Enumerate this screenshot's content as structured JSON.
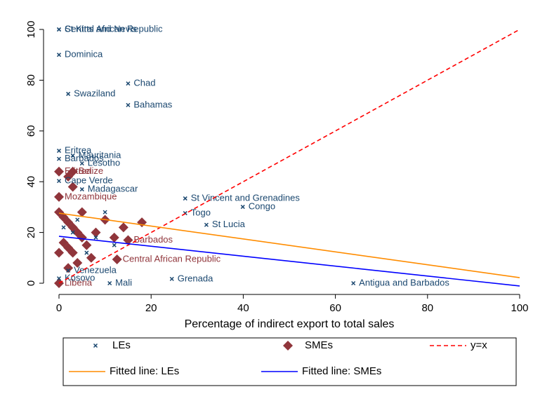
{
  "chart_data": {
    "type": "scatter",
    "x_label": "Percentage of indirect export to total sales",
    "xlim": [
      0,
      100
    ],
    "ylim": [
      0,
      100
    ],
    "xticks": [
      0,
      20,
      40,
      60,
      80,
      100
    ],
    "yticks": [
      0,
      20,
      40,
      60,
      80,
      100
    ],
    "series": [
      {
        "name": "LEs",
        "kind": "marker",
        "marker": "x",
        "color": "#1a476f",
        "x": [
          0,
          0,
          0,
          15,
          2,
          15,
          0,
          3,
          0,
          5,
          0,
          5,
          27.4,
          39.9,
          24.5,
          63.9,
          11,
          0,
          2,
          27.4,
          32,
          1,
          4,
          8,
          12,
          6,
          3,
          10
        ],
        "values": [
          100,
          100,
          90,
          78.7,
          74.6,
          70.2,
          52.2,
          50.3,
          49,
          47.2,
          40.3,
          37,
          33.4,
          30.1,
          1.7,
          0,
          0,
          1.9,
          5,
          27.6,
          23,
          22,
          25,
          18,
          15,
          12,
          20,
          28
        ],
        "labels": [
          "St Kitts and Nevis",
          "Central African Republic",
          "Dominica",
          "Chad",
          "Swaziland",
          "Bahamas",
          "Eritrea",
          "Mauritania",
          "Barbados",
          "Lesotho",
          "Cape Verde",
          "Madagascar",
          "St Vincent and Grenadines",
          "Congo",
          "Grenada",
          "Antigua and Barbados",
          "Mali",
          "Kosovo",
          "Venezuela",
          "Togo",
          "St Lucia",
          null,
          null,
          null,
          null,
          null,
          null,
          null
        ]
      },
      {
        "name": "SMEs",
        "kind": "marker",
        "marker": "diamond",
        "color": "#90353b",
        "x": [
          0,
          0,
          3,
          0,
          15,
          12.6,
          2,
          3,
          0,
          1,
          2,
          3,
          4,
          5,
          1,
          2,
          3,
          0,
          6,
          8,
          10,
          12,
          7,
          4,
          2,
          5,
          14,
          18
        ],
        "values": [
          44,
          0,
          44,
          34,
          17,
          9.4,
          42,
          38,
          28,
          26,
          24,
          22,
          20,
          18,
          16,
          14,
          12,
          12,
          15,
          20,
          25,
          18,
          10,
          8,
          6,
          28,
          22,
          24
        ],
        "labels": [
          "Eritrea",
          "Liberia",
          "Belize",
          "Mozambique",
          "Barbados",
          "Central African Republic",
          null,
          null,
          null,
          null,
          null,
          null,
          null,
          null,
          null,
          null,
          null,
          null,
          null,
          null,
          null,
          null,
          null,
          null,
          null,
          null,
          null,
          null
        ]
      },
      {
        "name": "y=x",
        "kind": "line",
        "dash": true,
        "color": "#ff0000",
        "x": [
          0,
          100
        ],
        "values": [
          0,
          100
        ]
      },
      {
        "name": "Fitted line: LEs",
        "kind": "line",
        "dash": false,
        "color": "#ff8c00",
        "x": [
          0,
          100
        ],
        "values": [
          27.6,
          2.2
        ]
      },
      {
        "name": "Fitted line: SMEs",
        "kind": "line",
        "dash": false,
        "color": "#0000ff",
        "x": [
          0,
          100
        ],
        "values": [
          18.5,
          -1.1
        ]
      }
    ]
  }
}
